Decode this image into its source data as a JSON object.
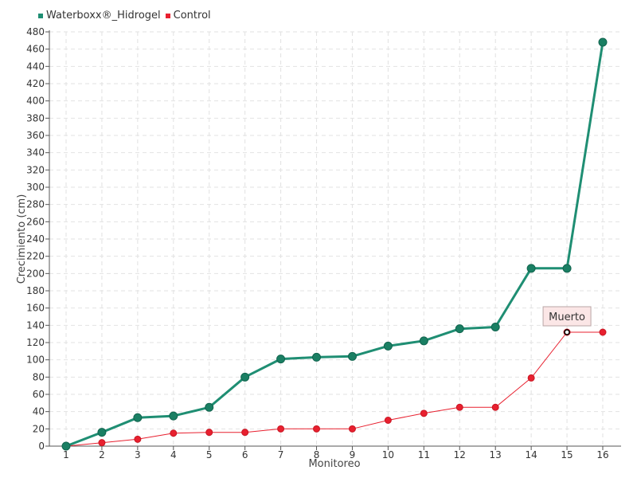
{
  "colors": {
    "series_1": "#1f8e73",
    "series_1_marker": "#1a7f63",
    "series_2": "#e8202f",
    "grid": "#e2e2e2",
    "axis": "#555555",
    "text": "#333333",
    "annotation_bg": "#fbe6e6",
    "annotation_border": "#b9a6a6"
  },
  "legend": {
    "position": "top-left",
    "items": [
      {
        "label": "Waterboxx®_Hidrogel",
        "color": "#1f8e73"
      },
      {
        "label": "Control",
        "color": "#e8202f"
      }
    ]
  },
  "chart_data": {
    "type": "line",
    "xlabel": "Monitoreo",
    "ylabel": "Crecimiento (cm)",
    "categories": [
      "1",
      "2",
      "3",
      "4",
      "5",
      "6",
      "7",
      "8",
      "9",
      "10",
      "11",
      "12",
      "13",
      "14",
      "15",
      "16"
    ],
    "ylim": [
      0,
      480
    ],
    "yticks": [
      0,
      20,
      40,
      60,
      80,
      100,
      120,
      140,
      160,
      180,
      200,
      220,
      240,
      260,
      280,
      300,
      320,
      340,
      360,
      380,
      400,
      420,
      440,
      460,
      480
    ],
    "grid": true,
    "series": [
      {
        "name": "Waterboxx®_Hidrogel",
        "values": [
          0,
          16,
          33,
          35,
          45,
          80,
          101,
          103,
          104,
          116,
          122,
          136,
          138,
          206,
          206,
          468
        ]
      },
      {
        "name": "Control",
        "values": [
          0,
          4,
          8,
          15,
          16,
          16,
          20,
          20,
          20,
          30,
          38,
          45,
          45,
          79,
          132,
          132
        ]
      }
    ],
    "annotations": [
      {
        "text": "Muerto",
        "series": 1,
        "index": 14
      }
    ]
  }
}
